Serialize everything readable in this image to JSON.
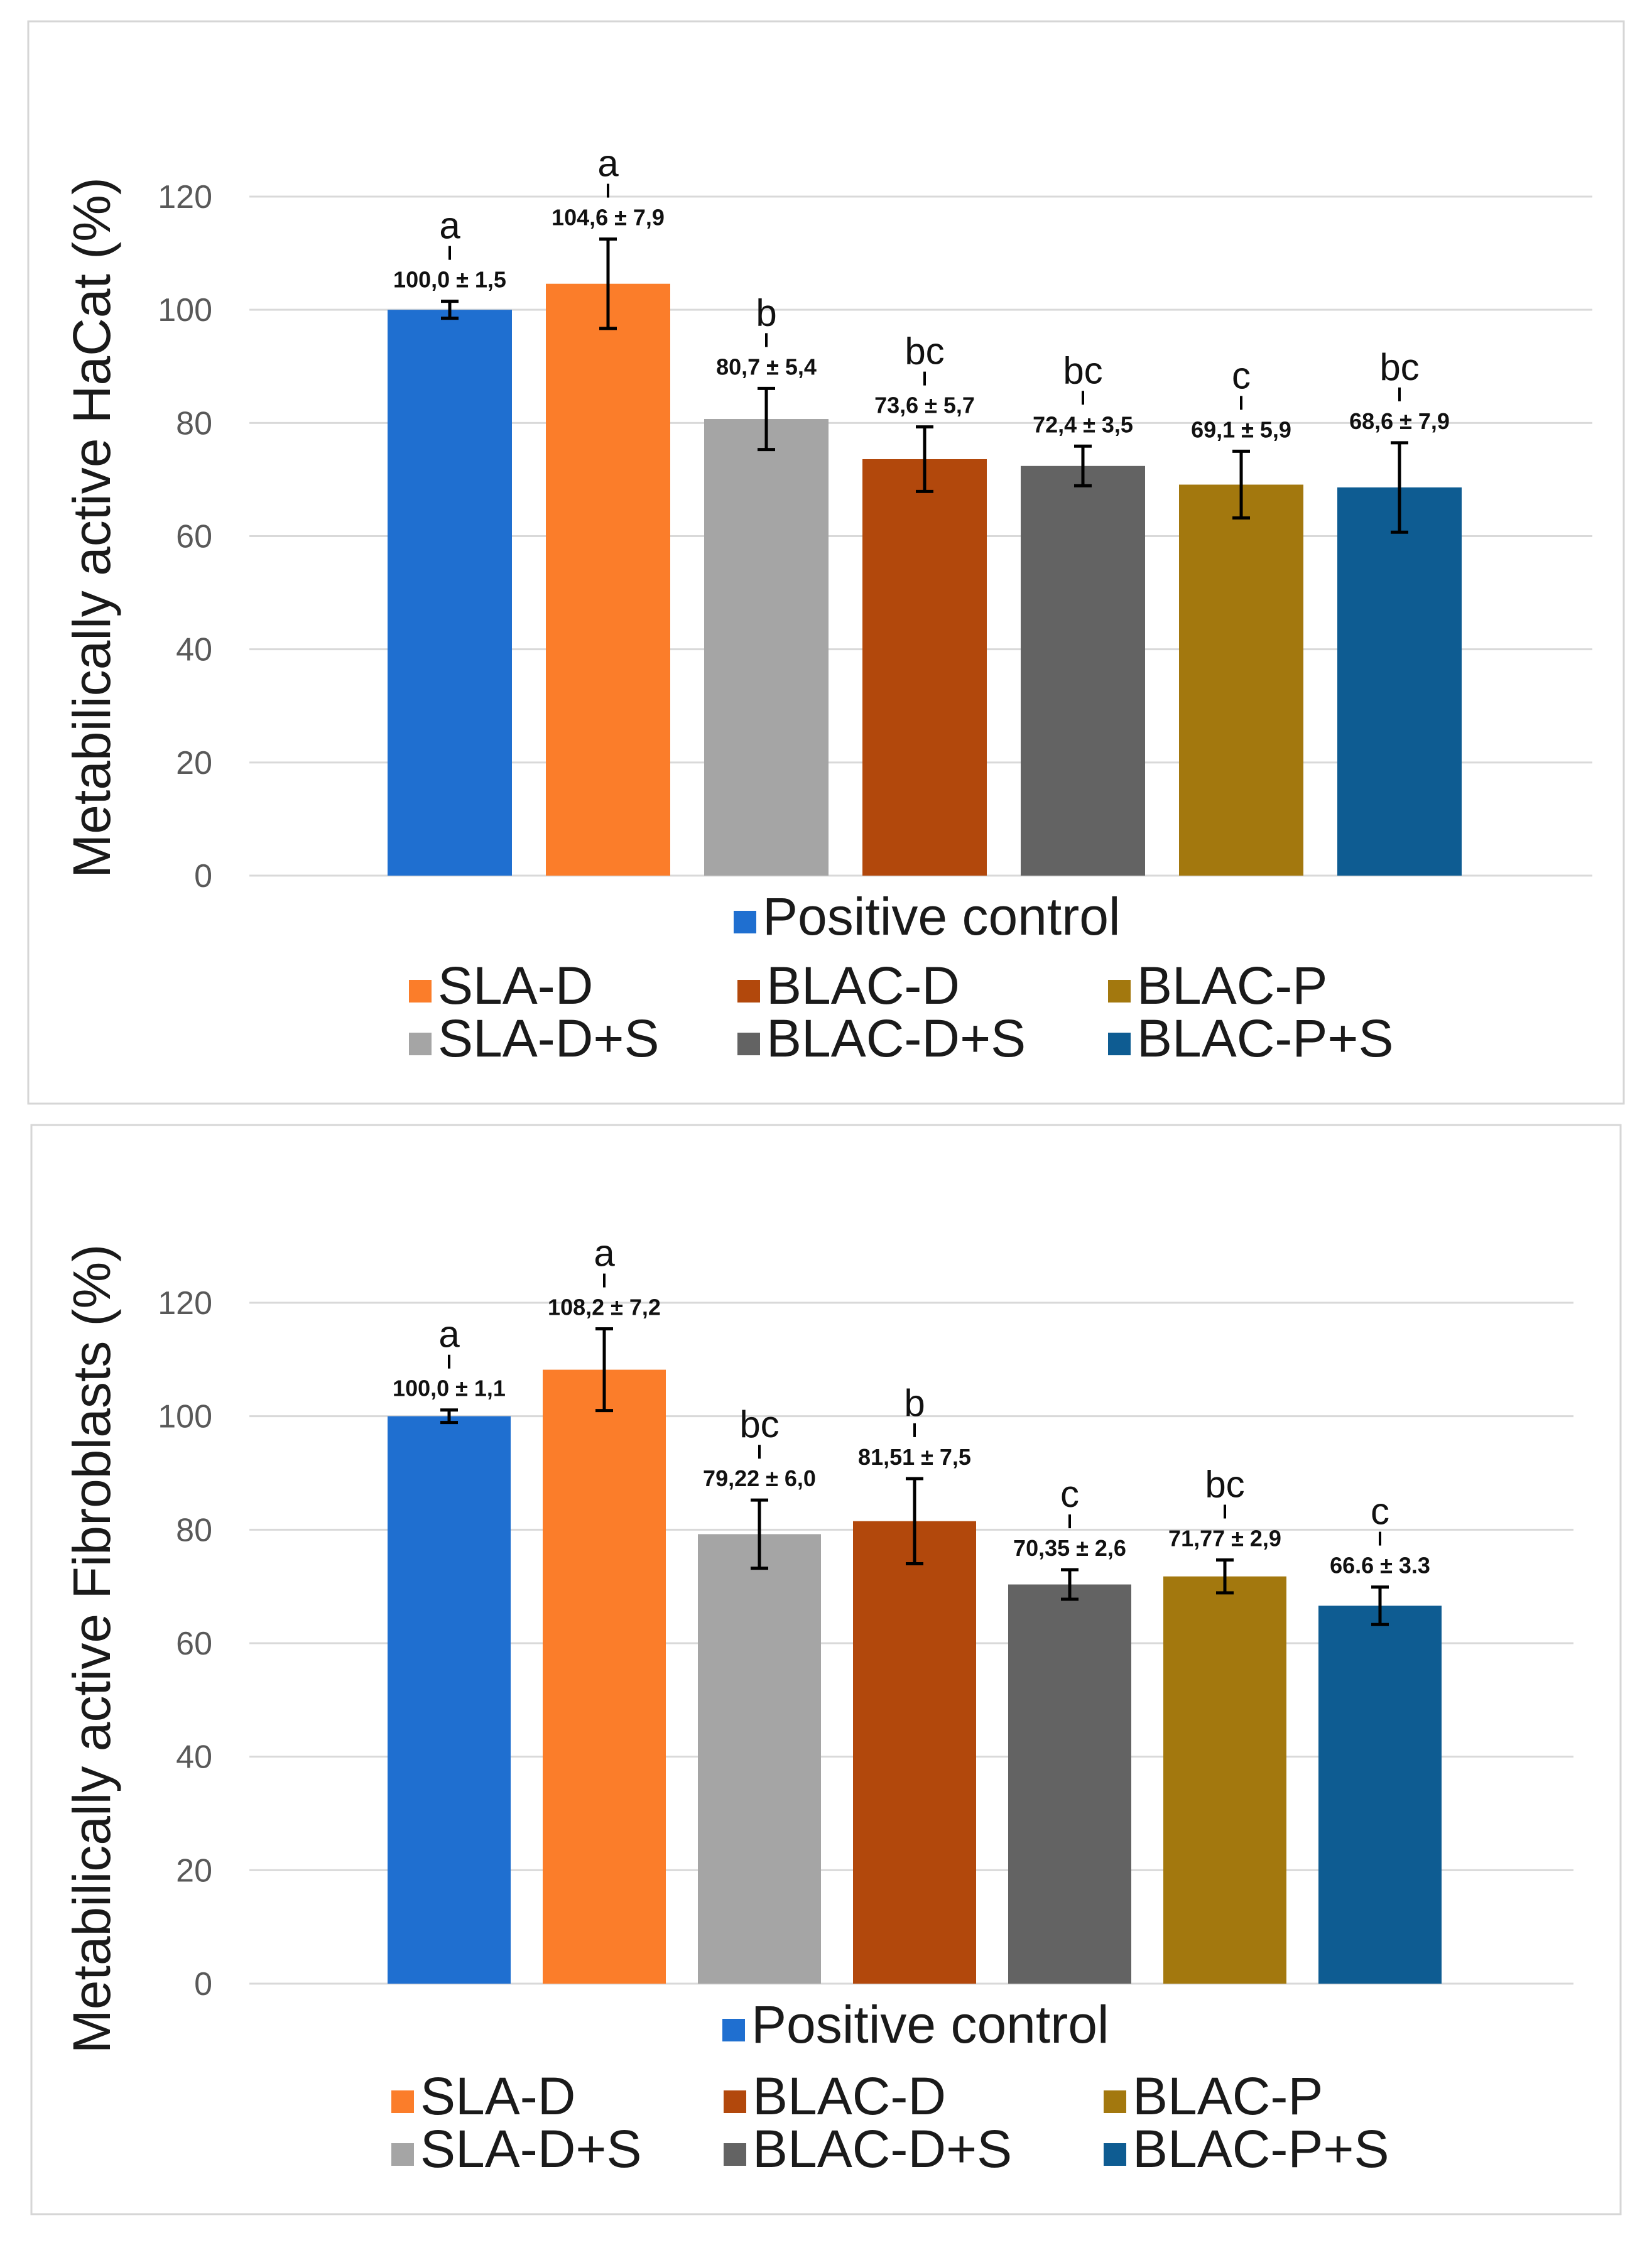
{
  "chart_data": [
    {
      "type": "bar",
      "title": "",
      "ylabel": "Metabilically active HaCat (%)",
      "xlabel": "",
      "ylim": [
        0,
        120
      ],
      "yticks": [
        "0",
        "20",
        "40",
        "60",
        "80",
        "100",
        "120"
      ],
      "grid": true,
      "legend_position": "bottom",
      "categories": [
        "Positive control",
        "SLA-D",
        "SLA-D+S",
        "BLAC-D",
        "BLAC-D+S",
        "BLAC-P",
        "BLAC-P+S"
      ],
      "values": [
        100.0,
        104.6,
        80.7,
        73.6,
        72.4,
        69.1,
        68.6
      ],
      "errors": [
        1.5,
        7.9,
        5.4,
        5.7,
        3.5,
        5.9,
        7.9
      ],
      "value_labels": [
        "100,0 ± 1,5",
        "104,6 ± 7,9",
        "80,7 ± 5,4",
        "73,6 ± 5,7",
        "72,4 ± 3,5",
        "69,1 ± 5,9",
        "68,6 ± 7,9"
      ],
      "letters": [
        "a",
        "a",
        "b",
        "bc",
        "bc",
        "c",
        "bc"
      ],
      "colors": [
        "#1f6fd0",
        "#fb7d2a",
        "#a5a5a5",
        "#b2480c",
        "#636363",
        "#a3780e",
        "#0e5c92"
      ]
    },
    {
      "type": "bar",
      "title": "",
      "ylabel": "Metabilically active Fibroblasts (%)",
      "xlabel": "",
      "ylim": [
        0,
        120
      ],
      "yticks": [
        "0",
        "20",
        "40",
        "60",
        "80",
        "100",
        "120"
      ],
      "grid": true,
      "legend_position": "bottom",
      "categories": [
        "Positive control",
        "SLA-D",
        "SLA-D+S",
        "BLAC-D",
        "BLAC-D+S",
        "BLAC-P",
        "BLAC-P+S"
      ],
      "values": [
        100.0,
        108.2,
        79.22,
        81.51,
        70.35,
        71.77,
        66.6
      ],
      "errors": [
        1.1,
        7.2,
        6.0,
        7.5,
        2.6,
        2.9,
        3.3
      ],
      "value_labels": [
        "100,0 ± 1,1",
        "108,2 ± 7,2",
        "79,22 ± 6,0",
        "81,51 ± 7,5",
        "70,35 ± 2,6",
        "71,77 ± 2,9",
        "66.6 ± 3.3"
      ],
      "letters": [
        "a",
        "a",
        "bc",
        "b",
        "c",
        "bc",
        "c"
      ],
      "colors": [
        "#1f6fd0",
        "#fb7d2a",
        "#a5a5a5",
        "#b2480c",
        "#636363",
        "#a3780e",
        "#0e5c92"
      ]
    }
  ]
}
